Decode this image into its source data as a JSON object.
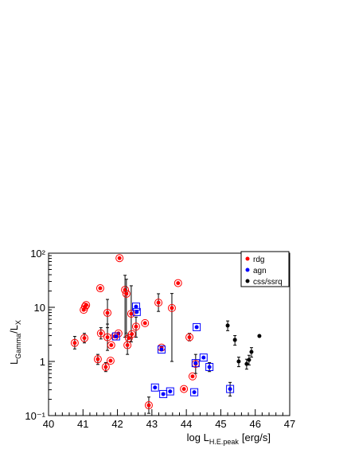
{
  "chart_data": {
    "type": "scatter",
    "xlabel": {
      "text": "log L",
      "sub": "H.E.peak",
      "suffix": "[erg/s]"
    },
    "ylabel": {
      "text": "L",
      "sub": "Gamma",
      "mid": "/L",
      "sub2": "X"
    },
    "xlim": [
      40,
      47
    ],
    "xticks": [
      40,
      41,
      42,
      43,
      44,
      45,
      46,
      47
    ],
    "ylim": [
      0.1,
      100
    ],
    "log_y": true,
    "yticks": [
      {
        "value": 0.1,
        "label": "10⁻¹"
      },
      {
        "value": 1,
        "label": "1"
      },
      {
        "value": 10,
        "label": "10"
      },
      {
        "value": 100,
        "label": "10²"
      }
    ],
    "legend": "top-right",
    "series": [
      {
        "name": "rdg",
        "color": "#ff0000",
        "x": [
          40.76,
          41.02,
          41.06,
          41.09,
          41.04,
          41.43,
          41.5,
          41.52,
          41.66,
          41.71,
          41.71,
          41.8,
          41.82,
          41.92,
          42.03,
          42.06,
          42.22,
          42.26,
          42.29,
          42.33,
          42.4,
          42.42,
          42.54,
          42.8,
          42.91,
          43.19,
          43.28,
          43.58,
          43.76,
          43.93,
          44.09,
          44.18,
          44.27
        ],
        "values": [
          2.2,
          9.0,
          10.3,
          11,
          2.7,
          1.1,
          22.5,
          3.3,
          0.79,
          7.9,
          2.8,
          1.03,
          2.0,
          2.9,
          3.3,
          81,
          21,
          17.8,
          2.0,
          2.7,
          7.6,
          3.2,
          4.4,
          5.1,
          0.155,
          12.2,
          1.8,
          9.7,
          28,
          0.31,
          2.8,
          0.53,
          0.9
        ],
        "ylow": [
          1.7,
          null,
          null,
          null,
          2.2,
          0.88,
          null,
          2.6,
          0.65,
          4.2,
          1.6,
          null,
          null,
          null,
          null,
          null,
          2.8,
          3.3,
          1.35,
          null,
          2.3,
          null,
          2.8,
          null,
          0.11,
          8.4,
          null,
          1.0,
          null,
          null,
          2.4,
          null,
          0.6
        ],
        "yhigh": [
          2.9,
          null,
          null,
          null,
          3.3,
          1.35,
          null,
          4.2,
          0.95,
          14,
          4.9,
          null,
          null,
          null,
          null,
          null,
          39,
          33,
          3.1,
          null,
          25,
          null,
          6.6,
          null,
          0.22,
          17.8,
          null,
          18,
          null,
          null,
          3.3,
          null,
          1.35
        ]
      },
      {
        "name": "agn",
        "color": "#0000ff",
        "x": [
          42.54,
          42.56,
          41.96,
          43.09,
          43.28,
          43.33,
          43.53,
          44.23,
          44.27,
          44.3,
          44.5,
          44.67,
          45.27
        ],
        "values": [
          10.3,
          8.2,
          2.9,
          0.33,
          1.66,
          0.25,
          0.28,
          0.27,
          0.93,
          4.3,
          1.18,
          0.79,
          0.31
        ],
        "ylow": [
          null,
          null,
          null,
          null,
          null,
          null,
          null,
          null,
          null,
          null,
          null,
          0.65,
          0.23
        ],
        "yhigh": [
          null,
          null,
          null,
          null,
          null,
          null,
          null,
          null,
          null,
          null,
          null,
          0.95,
          0.41
        ]
      },
      {
        "name": "css/ssrq",
        "color": "#000000",
        "x": [
          45.2,
          45.41,
          45.52,
          45.75,
          45.82,
          45.89,
          46.12
        ],
        "values": [
          4.6,
          2.5,
          1.0,
          0.9,
          1.07,
          1.5,
          2.95
        ],
        "ylow": [
          3.7,
          2.0,
          0.8,
          0.72,
          0.86,
          1.2,
          null
        ],
        "yhigh": [
          5.6,
          3.0,
          1.2,
          1.1,
          1.3,
          1.8,
          null
        ]
      }
    ]
  }
}
